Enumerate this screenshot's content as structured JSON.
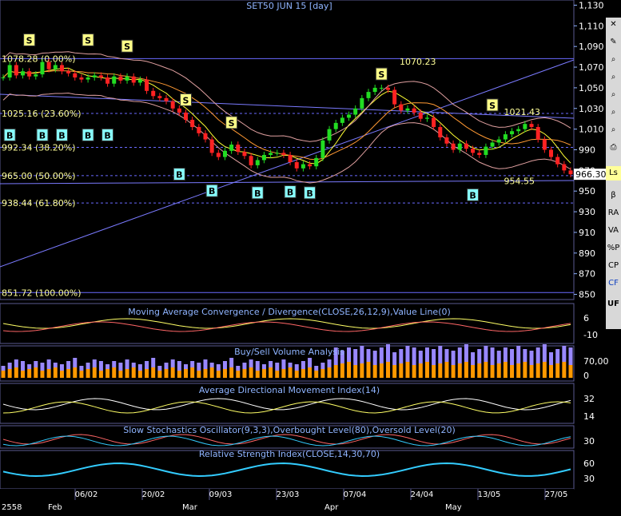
{
  "chart_data": [
    {
      "type": "candlestick",
      "title": "SET50 JUN 15   [day]",
      "y_ticks": [
        850,
        870,
        890,
        910,
        930,
        950,
        970,
        990,
        1010,
        1030,
        1050,
        1070,
        1090,
        1110,
        1130
      ],
      "y_tick_labels": [
        "850",
        "870",
        "890",
        "910",
        "930",
        "950",
        "970",
        "990",
        "1,010",
        "1,030",
        "1,050",
        "1,070",
        "1,090",
        "1,110",
        "1,130"
      ],
      "ylim": [
        845,
        1135
      ],
      "last_price": "966.30",
      "fib_levels": [
        {
          "label": "1078.28 (0.00%)",
          "value": 1078.28
        },
        {
          "label": "1025.16 (23.60%)",
          "value": 1025.16
        },
        {
          "label": "992.34 (38.20%)",
          "value": 992.34
        },
        {
          "label": "965.00 (50.00%)",
          "value": 965.0
        },
        {
          "label": "938.44 (61.80%)",
          "value": 938.44
        },
        {
          "label": "851.72 (100.00%)",
          "value": 851.72
        }
      ],
      "annotations": [
        {
          "text": "1070.23",
          "value": 1070.23
        },
        {
          "text": "1021.43",
          "value": 1021.43
        },
        {
          "text": "954.55",
          "value": 954.55
        }
      ],
      "close": [
        1060,
        1072,
        1062,
        1066,
        1061,
        1063,
        1075,
        1068,
        1072,
        1066,
        1064,
        1060,
        1058,
        1060,
        1062,
        1060,
        1054,
        1061,
        1057,
        1061,
        1055,
        1058,
        1047,
        1042,
        1040,
        1037,
        1030,
        1026,
        1019,
        1012,
        1006,
        1000,
        987,
        983,
        989,
        995,
        988,
        984,
        975,
        980,
        985,
        987,
        987,
        985,
        978,
        972,
        976,
        974,
        982,
        999,
        1010,
        1016,
        1021,
        1024,
        1030,
        1040,
        1046,
        1050,
        1050,
        1048,
        1034,
        1028,
        1030,
        1026,
        1020,
        1021,
        1012,
        1002,
        996,
        990,
        996,
        991,
        987,
        985,
        993,
        997,
        1000,
        1005,
        1008,
        1010,
        1015,
        1012,
        1000,
        990,
        983,
        976,
        970,
        966.3
      ],
      "buy_sell_signals": [
        {
          "i": 4,
          "t": "S",
          "v": 1096
        },
        {
          "i": 13,
          "t": "S",
          "v": 1096
        },
        {
          "i": 19,
          "t": "S",
          "v": 1090
        },
        {
          "i": 28,
          "t": "S",
          "v": 1038
        },
        {
          "i": 35,
          "t": "S",
          "v": 1016
        },
        {
          "i": 58,
          "t": "S",
          "v": 1063
        },
        {
          "i": 75,
          "t": "S",
          "v": 1033
        },
        {
          "i": 1,
          "t": "B",
          "v": 1004
        },
        {
          "i": 6,
          "t": "B",
          "v": 1004
        },
        {
          "i": 9,
          "t": "B",
          "v": 1004
        },
        {
          "i": 13,
          "t": "B",
          "v": 1004
        },
        {
          "i": 16,
          "t": "B",
          "v": 1004
        },
        {
          "i": 27,
          "t": "B",
          "v": 966
        },
        {
          "i": 32,
          "t": "B",
          "v": 950
        },
        {
          "i": 39,
          "t": "B",
          "v": 948
        },
        {
          "i": 44,
          "t": "B",
          "v": 949
        },
        {
          "i": 47,
          "t": "B",
          "v": 948
        },
        {
          "i": 72,
          "t": "B",
          "v": 946
        }
      ]
    },
    {
      "type": "line",
      "title": "Moving Average Convergence / Divergence(CLOSE,26,12,9),Value Line(0)",
      "y_tick_labels": [
        "6",
        "-10"
      ]
    },
    {
      "type": "bar",
      "title": "Buy/Sell Volume Analysis",
      "y_tick_labels": [
        "70,00",
        "0"
      ]
    },
    {
      "type": "line",
      "title": "Average Directional Movement Index(14)",
      "y_tick_labels": [
        "32",
        "14"
      ]
    },
    {
      "type": "line",
      "title": "Slow Stochastics Oscillator(9,3,3),Overbought Level(80),Oversold Level(20)",
      "y_tick_labels": [
        "30"
      ]
    },
    {
      "type": "line",
      "title": "Relative Strength Index(CLOSE,14,30,70)",
      "y_tick_labels": [
        "60",
        "30"
      ]
    }
  ],
  "x_axis": {
    "date_labels": [
      "06/02",
      "20/02",
      "09/03",
      "23/03",
      "07/04",
      "24/04",
      "13/05",
      "27/05"
    ],
    "month_labels": [
      "2558",
      "Feb",
      "Mar",
      "Apr",
      "May"
    ]
  },
  "toolbar": {
    "items": [
      "β",
      "RA",
      "VA",
      "%P",
      "CP",
      "CF",
      "UF"
    ]
  },
  "colors": {
    "price_line": "#ffffff",
    "fib": "#ffff99",
    "buy": "#40e0ff",
    "sell": "#ffff66"
  }
}
